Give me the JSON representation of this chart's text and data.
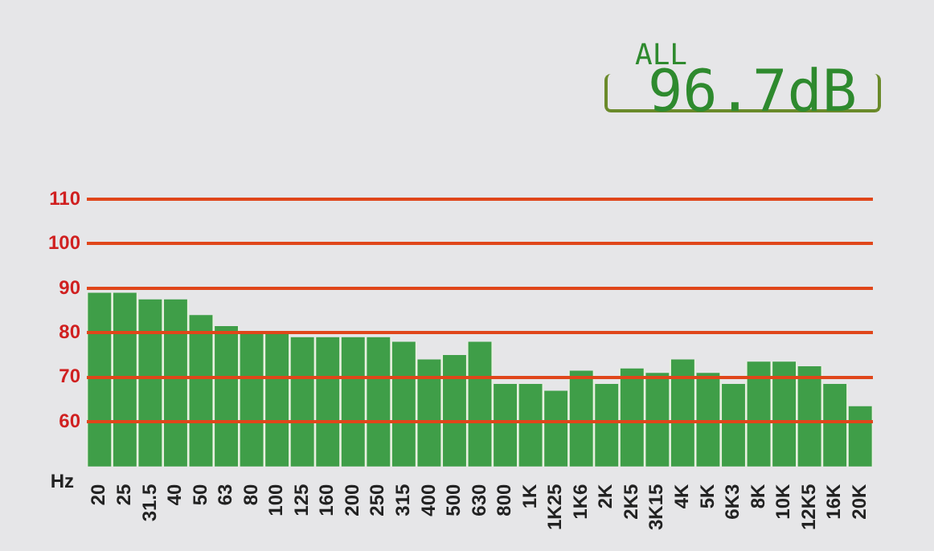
{
  "chart_data": {
    "type": "bar",
    "categories": [
      "20",
      "25",
      "31.5",
      "40",
      "50",
      "63",
      "80",
      "100",
      "125",
      "160",
      "200",
      "250",
      "315",
      "400",
      "500",
      "630",
      "800",
      "1K",
      "1K25",
      "1K6",
      "2K",
      "2K5",
      "3K15",
      "4K",
      "5K",
      "6K3",
      "8K",
      "10K",
      "12K5",
      "16K",
      "20K"
    ],
    "values": [
      89,
      89,
      87.5,
      87.5,
      84,
      81.5,
      80,
      80,
      79,
      79,
      79,
      79,
      78,
      74,
      75,
      78,
      68.5,
      68.5,
      67,
      71.5,
      68.5,
      72,
      71,
      74,
      71,
      68.5,
      73.5,
      73.5,
      72.5,
      68.5,
      63.5
    ],
    "color": "#3f9e48",
    "xlabel": "Hz",
    "ylim": [
      50,
      110
    ],
    "yticks": [
      60,
      70,
      80,
      90,
      100,
      110
    ],
    "grid": "y",
    "annotations": [
      "ALL",
      "96.7dB"
    ]
  }
}
